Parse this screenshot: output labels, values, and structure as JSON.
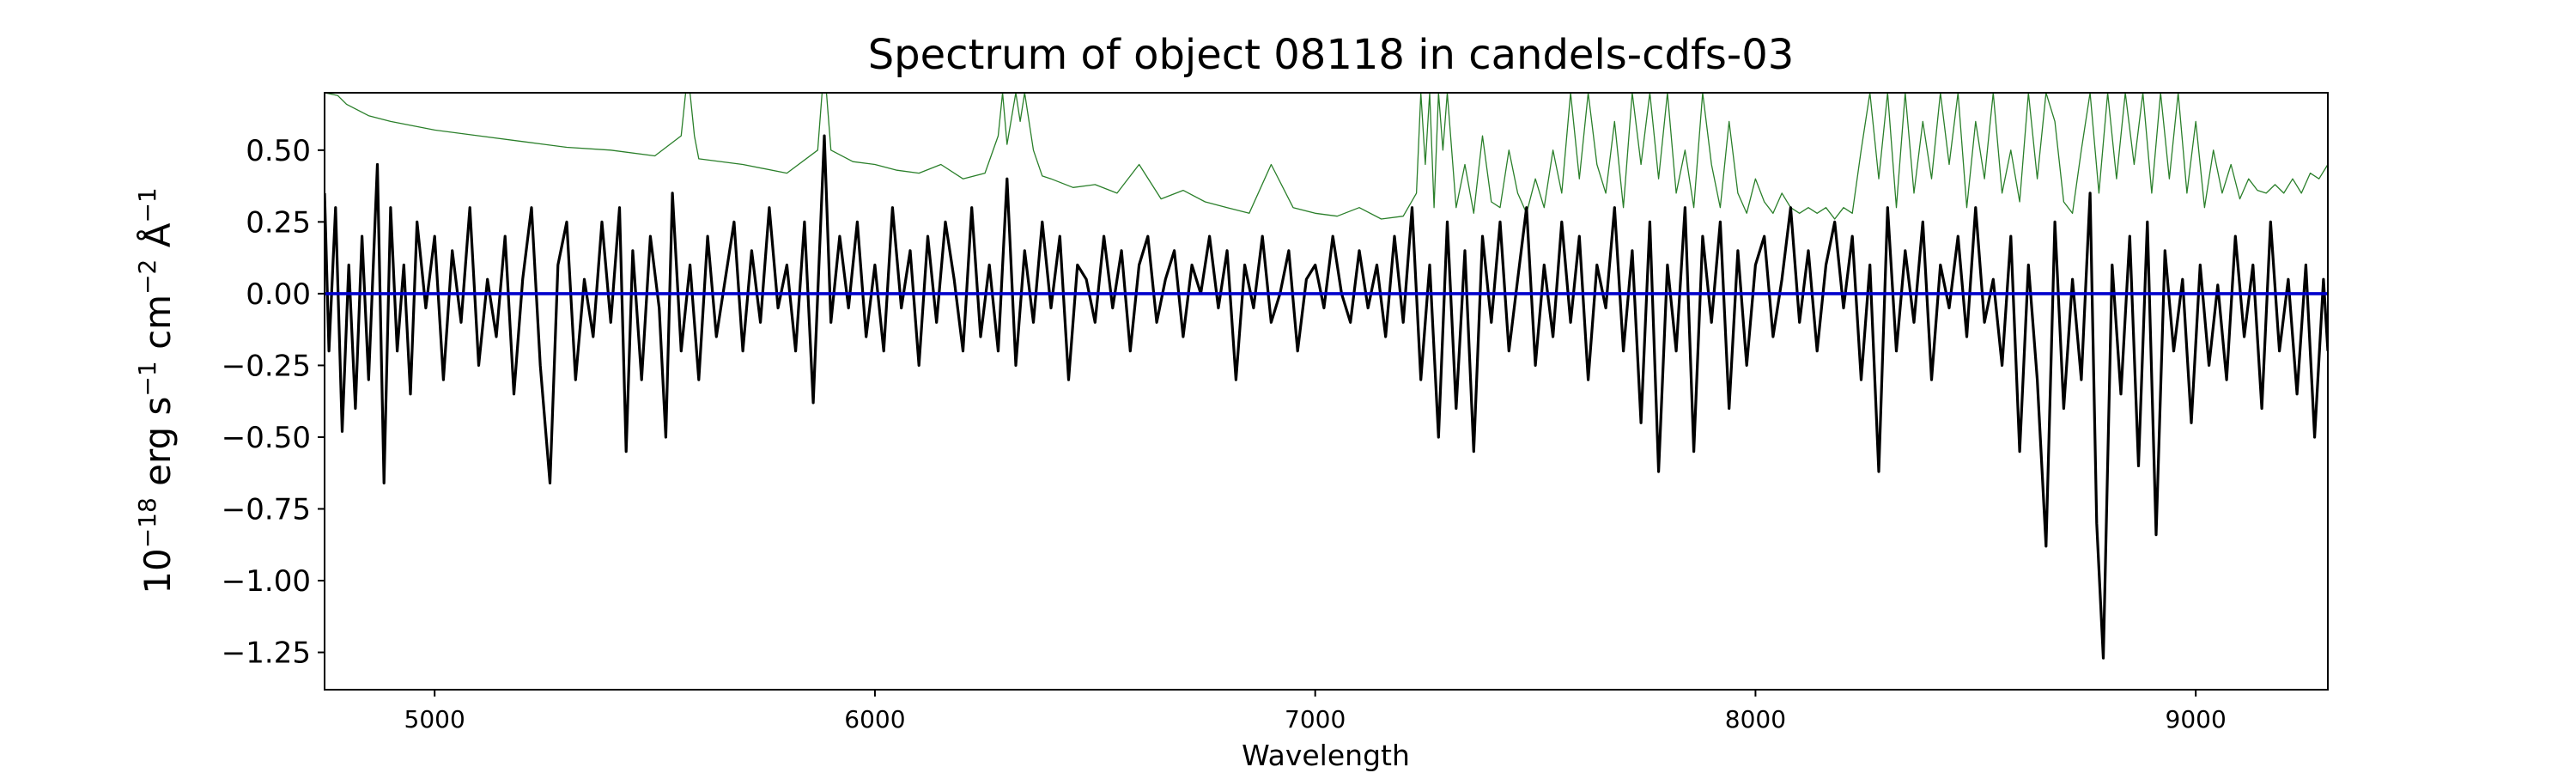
{
  "chart_data": {
    "type": "line",
    "title": "Spectrum of object 08118 in candels-cdfs-03",
    "xlabel": "Wavelength",
    "ylabel": {
      "prefix": "10",
      "exp1": "−18",
      "t1": " erg s",
      "exp2": "−1",
      "t2": " cm",
      "exp3": "−2",
      "t3": " Å",
      "exp4": "−1"
    },
    "xlim": [
      4750,
      9300
    ],
    "ylim": [
      -1.38,
      0.7
    ],
    "xticks": [
      5000,
      6000,
      7000,
      8000,
      9000
    ],
    "xtick_labels": [
      "5000",
      "6000",
      "7000",
      "8000",
      "9000"
    ],
    "yticks": [
      0.5,
      0.25,
      0.0,
      -0.25,
      -0.5,
      -0.75,
      -1.0,
      -1.25
    ],
    "ytick_labels": [
      "0.50",
      "0.25",
      "0.00",
      "−0.25",
      "−0.50",
      "−0.75",
      "−1.00",
      "−1.25"
    ],
    "grid": false,
    "colors": {
      "flux": "#000000",
      "error": "#2a7f2a",
      "zero": "#0000cc"
    },
    "series": [
      {
        "role": "flux",
        "x": [
          4750,
          4760,
          4775,
          4790,
          4805,
          4820,
          4835,
          4850,
          4870,
          4885,
          4900,
          4915,
          4930,
          4945,
          4960,
          4980,
          5000,
          5020,
          5040,
          5060,
          5080,
          5100,
          5120,
          5140,
          5160,
          5180,
          5200,
          5220,
          5240,
          5262,
          5280,
          5300,
          5320,
          5340,
          5360,
          5380,
          5400,
          5420,
          5435,
          5450,
          5470,
          5490,
          5510,
          5525,
          5540,
          5560,
          5580,
          5600,
          5620,
          5640,
          5660,
          5680,
          5700,
          5720,
          5740,
          5760,
          5780,
          5800,
          5820,
          5840,
          5860,
          5885,
          5900,
          5920,
          5940,
          5960,
          5980,
          6000,
          6020,
          6040,
          6060,
          6080,
          6100,
          6120,
          6140,
          6160,
          6180,
          6200,
          6220,
          6240,
          6260,
          6280,
          6300,
          6320,
          6340,
          6360,
          6380,
          6400,
          6420,
          6440,
          6460,
          6480,
          6500,
          6520,
          6540,
          6560,
          6580,
          6600,
          6620,
          6640,
          6660,
          6680,
          6700,
          6720,
          6740,
          6760,
          6780,
          6800,
          6820,
          6840,
          6860,
          6880,
          6900,
          6920,
          6940,
          6960,
          6980,
          7000,
          7020,
          7040,
          7060,
          7080,
          7100,
          7120,
          7140,
          7160,
          7180,
          7200,
          7220,
          7240,
          7260,
          7280,
          7300,
          7320,
          7340,
          7360,
          7380,
          7400,
          7420,
          7440,
          7460,
          7480,
          7500,
          7520,
          7540,
          7560,
          7580,
          7600,
          7620,
          7640,
          7660,
          7680,
          7700,
          7720,
          7740,
          7760,
          7780,
          7800,
          7820,
          7840,
          7860,
          7880,
          7900,
          7920,
          7940,
          7960,
          7980,
          8000,
          8020,
          8040,
          8060,
          8080,
          8100,
          8120,
          8140,
          8160,
          8180,
          8200,
          8220,
          8240,
          8260,
          8280,
          8300,
          8320,
          8340,
          8360,
          8380,
          8400,
          8420,
          8440,
          8460,
          8480,
          8500,
          8520,
          8540,
          8560,
          8580,
          8600,
          8620,
          8640,
          8660,
          8680,
          8700,
          8720,
          8740,
          8760,
          8775,
          8790,
          8810,
          8830,
          8850,
          8870,
          8890,
          8910,
          8930,
          8950,
          8970,
          8990,
          9010,
          9030,
          9050,
          9070,
          9090,
          9110,
          9130,
          9150,
          9170,
          9190,
          9210,
          9230,
          9250,
          9270,
          9290,
          9300
        ],
        "y": [
          0.35,
          -0.2,
          0.3,
          -0.48,
          0.1,
          -0.4,
          0.2,
          -0.3,
          0.45,
          -0.66,
          0.3,
          -0.2,
          0.1,
          -0.35,
          0.25,
          -0.05,
          0.2,
          -0.3,
          0.15,
          -0.1,
          0.3,
          -0.25,
          0.05,
          -0.15,
          0.2,
          -0.35,
          0.05,
          0.3,
          -0.25,
          -0.66,
          0.1,
          0.25,
          -0.3,
          0.05,
          -0.15,
          0.25,
          -0.1,
          0.3,
          -0.55,
          0.15,
          -0.3,
          0.2,
          -0.05,
          -0.5,
          0.35,
          -0.2,
          0.1,
          -0.3,
          0.2,
          -0.15,
          0.05,
          0.25,
          -0.2,
          0.15,
          -0.1,
          0.3,
          -0.05,
          0.1,
          -0.2,
          0.25,
          -0.38,
          0.55,
          -0.1,
          0.2,
          -0.05,
          0.25,
          -0.15,
          0.1,
          -0.2,
          0.3,
          -0.05,
          0.15,
          -0.25,
          0.2,
          -0.1,
          0.25,
          0.05,
          -0.2,
          0.3,
          -0.15,
          0.1,
          -0.2,
          0.4,
          -0.25,
          0.15,
          -0.1,
          0.25,
          -0.05,
          0.2,
          -0.3,
          0.1,
          0.05,
          -0.1,
          0.2,
          -0.05,
          0.15,
          -0.2,
          0.1,
          0.2,
          -0.1,
          0.05,
          0.15,
          -0.15,
          0.1,
          0.0,
          0.2,
          -0.05,
          0.15,
          -0.3,
          0.1,
          -0.05,
          0.2,
          -0.1,
          0.0,
          0.15,
          -0.2,
          0.05,
          0.1,
          -0.05,
          0.2,
          0.0,
          -0.1,
          0.15,
          -0.05,
          0.1,
          -0.15,
          0.2,
          -0.1,
          0.3,
          -0.3,
          0.1,
          -0.5,
          0.25,
          -0.4,
          0.15,
          -0.55,
          0.2,
          -0.1,
          0.25,
          -0.2,
          0.05,
          0.3,
          -0.25,
          0.1,
          -0.15,
          0.25,
          -0.1,
          0.2,
          -0.3,
          0.1,
          -0.05,
          0.3,
          -0.2,
          0.15,
          -0.45,
          0.25,
          -0.62,
          0.1,
          -0.2,
          0.3,
          -0.55,
          0.2,
          -0.1,
          0.25,
          -0.4,
          0.15,
          -0.25,
          0.1,
          0.2,
          -0.15,
          0.05,
          0.3,
          -0.1,
          0.15,
          -0.2,
          0.1,
          0.25,
          -0.05,
          0.2,
          -0.3,
          0.1,
          -0.62,
          0.3,
          -0.2,
          0.15,
          -0.1,
          0.25,
          -0.3,
          0.1,
          -0.05,
          0.2,
          -0.15,
          0.3,
          -0.1,
          0.05,
          -0.25,
          0.2,
          -0.55,
          0.1,
          -0.3,
          -0.88,
          0.25,
          -0.4,
          0.05,
          -0.3,
          0.35,
          -0.8,
          -1.27,
          0.1,
          -0.35,
          0.2,
          -0.6,
          0.25,
          -0.84,
          0.15,
          -0.2,
          0.05,
          -0.45,
          0.1,
          -0.25,
          0.03,
          -0.3,
          0.2,
          -0.15,
          0.1,
          -0.4,
          0.25,
          -0.2,
          0.05,
          -0.35,
          0.1,
          -0.5,
          0.05,
          -0.2
        ]
      },
      {
        "role": "error",
        "x": [
          4750,
          4780,
          4800,
          4850,
          4900,
          5000,
          5100,
          5200,
          5300,
          5400,
          5500,
          5560,
          5570,
          5580,
          5590,
          5600,
          5700,
          5800,
          5870,
          5880,
          5890,
          5900,
          5950,
          6000,
          6050,
          6100,
          6150,
          6200,
          6250,
          6280,
          6290,
          6300,
          6320,
          6330,
          6340,
          6360,
          6380,
          6400,
          6450,
          6500,
          6550,
          6600,
          6650,
          6700,
          6750,
          6800,
          6850,
          6900,
          6950,
          7000,
          7050,
          7100,
          7150,
          7200,
          7230,
          7240,
          7250,
          7260,
          7270,
          7280,
          7290,
          7300,
          7320,
          7340,
          7360,
          7380,
          7400,
          7420,
          7440,
          7460,
          7480,
          7500,
          7520,
          7540,
          7560,
          7580,
          7600,
          7620,
          7640,
          7660,
          7680,
          7700,
          7720,
          7740,
          7760,
          7780,
          7800,
          7820,
          7840,
          7860,
          7880,
          7900,
          7920,
          7940,
          7960,
          7980,
          8000,
          8020,
          8040,
          8060,
          8080,
          8100,
          8120,
          8140,
          8160,
          8180,
          8200,
          8220,
          8240,
          8260,
          8280,
          8300,
          8320,
          8340,
          8360,
          8380,
          8400,
          8420,
          8440,
          8460,
          8480,
          8500,
          8520,
          8540,
          8560,
          8580,
          8600,
          8620,
          8640,
          8660,
          8680,
          8700,
          8720,
          8740,
          8760,
          8780,
          8800,
          8820,
          8840,
          8860,
          8880,
          8900,
          8920,
          8940,
          8960,
          8980,
          9000,
          9020,
          9040,
          9060,
          9080,
          9100,
          9120,
          9140,
          9160,
          9180,
          9200,
          9220,
          9240,
          9260,
          9280,
          9300
        ],
        "y": [
          0.7,
          0.69,
          0.66,
          0.62,
          0.6,
          0.57,
          0.55,
          0.53,
          0.51,
          0.5,
          0.48,
          0.55,
          0.7,
          0.7,
          0.55,
          0.47,
          0.45,
          0.42,
          0.5,
          0.7,
          0.7,
          0.5,
          0.46,
          0.45,
          0.43,
          0.42,
          0.45,
          0.4,
          0.42,
          0.55,
          0.7,
          0.52,
          0.7,
          0.6,
          0.7,
          0.5,
          0.41,
          0.4,
          0.37,
          0.38,
          0.35,
          0.45,
          0.33,
          0.36,
          0.32,
          0.3,
          0.28,
          0.45,
          0.3,
          0.28,
          0.27,
          0.3,
          0.26,
          0.27,
          0.35,
          0.7,
          0.45,
          0.7,
          0.3,
          0.7,
          0.5,
          0.7,
          0.3,
          0.45,
          0.28,
          0.55,
          0.32,
          0.3,
          0.5,
          0.35,
          0.28,
          0.4,
          0.3,
          0.5,
          0.35,
          0.7,
          0.4,
          0.7,
          0.45,
          0.35,
          0.6,
          0.3,
          0.7,
          0.45,
          0.7,
          0.4,
          0.7,
          0.35,
          0.5,
          0.3,
          0.7,
          0.45,
          0.3,
          0.6,
          0.35,
          0.28,
          0.4,
          0.32,
          0.28,
          0.35,
          0.3,
          0.28,
          0.3,
          0.28,
          0.3,
          0.26,
          0.3,
          0.28,
          0.5,
          0.7,
          0.4,
          0.7,
          0.3,
          0.7,
          0.35,
          0.6,
          0.4,
          0.7,
          0.45,
          0.7,
          0.3,
          0.6,
          0.4,
          0.7,
          0.35,
          0.5,
          0.32,
          0.7,
          0.4,
          0.7,
          0.6,
          0.32,
          0.28,
          0.5,
          0.7,
          0.35,
          0.7,
          0.4,
          0.7,
          0.45,
          0.7,
          0.35,
          0.7,
          0.4,
          0.7,
          0.35,
          0.6,
          0.3,
          0.5,
          0.35,
          0.45,
          0.33,
          0.4,
          0.36,
          0.35,
          0.38,
          0.35,
          0.4,
          0.35,
          0.42,
          0.4,
          0.45
        ]
      },
      {
        "role": "zero",
        "x": [
          4750,
          9300
        ],
        "y": [
          0,
          0
        ]
      }
    ]
  }
}
